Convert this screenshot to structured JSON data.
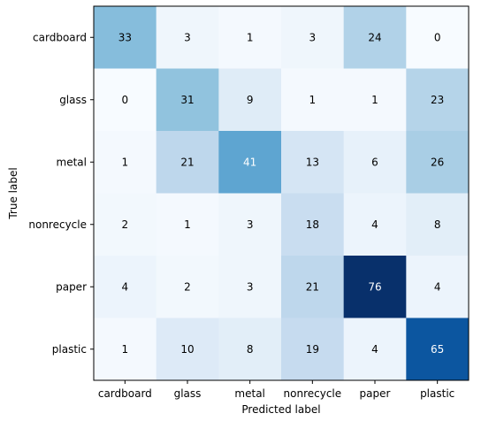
{
  "chart_data": {
    "type": "heatmap",
    "title": "",
    "xlabel": "Predicted label",
    "ylabel": "True label",
    "x_categories": [
      "cardboard",
      "glass",
      "metal",
      "nonrecycle",
      "paper",
      "plastic"
    ],
    "y_categories": [
      "cardboard",
      "glass",
      "metal",
      "nonrecycle",
      "paper",
      "plastic"
    ],
    "values": [
      [
        33,
        3,
        1,
        3,
        24,
        0
      ],
      [
        0,
        31,
        9,
        1,
        1,
        23
      ],
      [
        1,
        21,
        41,
        13,
        6,
        26
      ],
      [
        2,
        1,
        3,
        18,
        4,
        8
      ],
      [
        4,
        2,
        3,
        21,
        76,
        4
      ],
      [
        1,
        10,
        8,
        19,
        4,
        65
      ]
    ],
    "value_range": [
      0,
      76
    ],
    "colormap": "Blues",
    "grid": false,
    "colorbar": false
  }
}
